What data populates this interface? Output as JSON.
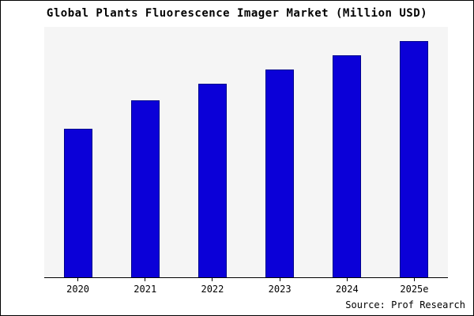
{
  "title": "Global Plants Fluorescence Imager Market (Million USD)",
  "source": "Source: Prof Research",
  "colors": {
    "bar_fill": "#0b00d8",
    "bar_border": "#00008b",
    "plot_background": "#f5f5f5",
    "frame_border": "#000000"
  },
  "chart_data": {
    "type": "bar",
    "categories": [
      "2020",
      "2021",
      "2022",
      "2023",
      "2024",
      "2025e"
    ],
    "values": [
      63,
      75,
      82,
      88,
      94,
      100
    ],
    "title": "Global Plants Fluorescence Imager Market (Million USD)",
    "xlabel": "",
    "ylabel": "",
    "ylim": [
      0,
      106
    ],
    "grid": false,
    "legend": "none",
    "y_axis_labels_visible": false,
    "annotation": "Source: Prof Research"
  }
}
